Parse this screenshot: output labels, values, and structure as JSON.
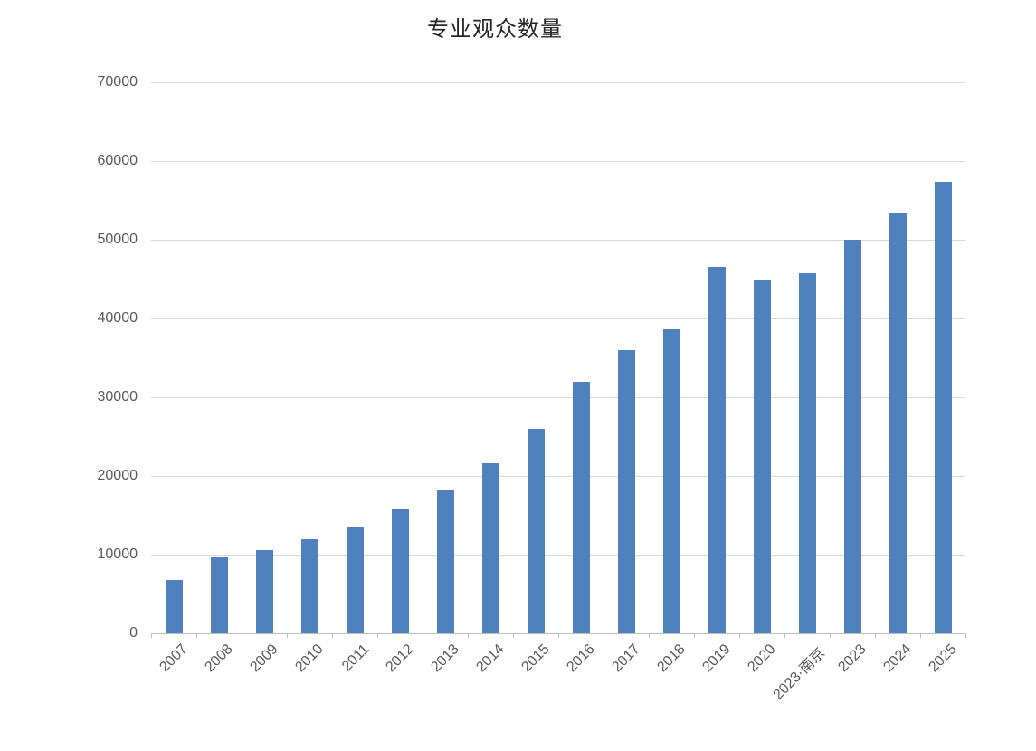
{
  "chart": {
    "title": "专业观众数量",
    "colors": {
      "bar": "#4E81BD",
      "gridline": "#D9D9D9",
      "axis": "#BFBFBF",
      "tick_label": "#595959",
      "title": "#262626",
      "background": "#FFFFFF"
    }
  },
  "chart_data": {
    "type": "bar",
    "title": "专业观众数量",
    "xlabel": "",
    "ylabel": "",
    "categories": [
      "2007",
      "2008",
      "2009",
      "2010",
      "2011",
      "2012",
      "2013",
      "2014",
      "2015",
      "2016",
      "2017",
      "2018",
      "2019",
      "2020",
      "2023·南京",
      "2023",
      "2024",
      "2025"
    ],
    "values": [
      6800,
      9700,
      10600,
      12000,
      13600,
      15700,
      18300,
      21600,
      26000,
      32000,
      36000,
      38600,
      46600,
      45000,
      45700,
      50000,
      53400,
      57400
    ],
    "ylim": [
      0,
      70000
    ],
    "yticks": [
      0,
      10000,
      20000,
      30000,
      40000,
      50000,
      60000,
      70000
    ],
    "grid": true,
    "legend": false,
    "x_label_rotation_deg": -45,
    "bar_color": "#4E81BD"
  }
}
